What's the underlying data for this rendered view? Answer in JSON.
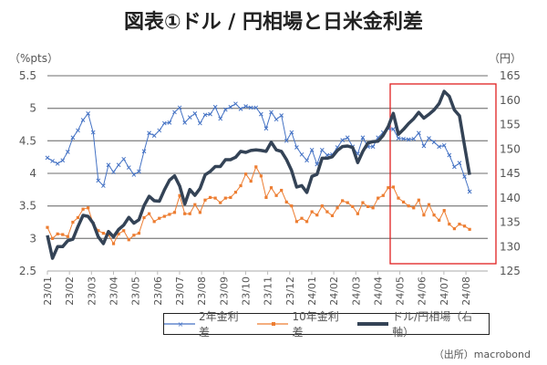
{
  "title": "図表①ドル / 円相場と日米金利差",
  "source": "（出所）macrobond",
  "chart_data": {
    "type": "line",
    "title": "図表①ドル / 円相場と日米金利差",
    "x_unit": "weekly observations starting 2023/01",
    "x_tick_labels": [
      "23/01",
      "23/02",
      "23/03",
      "23/04",
      "23/05",
      "23/06",
      "23/07",
      "23/08",
      "23/09",
      "23/10",
      "23/11",
      "23/12",
      "24/01",
      "24/02",
      "24/03",
      "24/04",
      "24/05",
      "24/06",
      "24/07",
      "24/08"
    ],
    "y_left": {
      "label": "（%pts）",
      "range": [
        2.5,
        5.5
      ],
      "ticks": [
        "2.5",
        "3",
        "3.5",
        "4",
        "4.5",
        "5",
        "5.5"
      ]
    },
    "y_right": {
      "label": "（円）",
      "range": [
        125,
        165
      ],
      "ticks": [
        "125",
        "130",
        "135",
        "140",
        "145",
        "150",
        "155",
        "160",
        "165"
      ]
    },
    "grid": true,
    "legend_position": "bottom",
    "highlight_box": "2024/05–2024/08",
    "series": [
      {
        "name": "2年金利差",
        "axis": "left",
        "color": "#4472C4",
        "marker": "x",
        "values": [
          4.24,
          4.19,
          4.15,
          4.2,
          4.33,
          4.55,
          4.66,
          4.82,
          4.92,
          4.63,
          3.89,
          3.81,
          4.13,
          4.02,
          4.13,
          4.22,
          4.09,
          3.98,
          4.03,
          4.34,
          4.62,
          4.58,
          4.66,
          4.77,
          4.78,
          4.94,
          5.01,
          4.78,
          4.86,
          4.92,
          4.77,
          4.9,
          4.91,
          5.02,
          4.84,
          4.98,
          5.02,
          5.07,
          4.99,
          5.03,
          5.01,
          5.01,
          4.91,
          4.69,
          4.94,
          4.83,
          4.89,
          4.5,
          4.63,
          4.4,
          4.29,
          4.2,
          4.36,
          4.14,
          4.36,
          4.28,
          4.29,
          4.4,
          4.51,
          4.55,
          4.41,
          4.3,
          4.55,
          4.41,
          4.41,
          4.55,
          4.63,
          4.69,
          4.68,
          4.54,
          4.53,
          4.52,
          4.53,
          4.62,
          4.42,
          4.54,
          4.48,
          4.41,
          4.43,
          4.28,
          4.1,
          4.16,
          3.95,
          3.72
        ]
      },
      {
        "name": "10年金利差",
        "axis": "left",
        "color": "#ED7D31",
        "marker": "square",
        "values": [
          3.17,
          3.0,
          3.07,
          3.06,
          3.03,
          3.25,
          3.32,
          3.45,
          3.47,
          3.23,
          3.12,
          3.08,
          3.06,
          2.92,
          3.07,
          3.12,
          2.98,
          3.05,
          3.08,
          3.32,
          3.38,
          3.26,
          3.31,
          3.34,
          3.37,
          3.4,
          3.66,
          3.38,
          3.38,
          3.52,
          3.4,
          3.59,
          3.63,
          3.62,
          3.55,
          3.62,
          3.63,
          3.71,
          3.81,
          3.99,
          3.88,
          4.1,
          3.96,
          3.63,
          3.78,
          3.66,
          3.74,
          3.56,
          3.5,
          3.26,
          3.31,
          3.26,
          3.41,
          3.36,
          3.5,
          3.41,
          3.35,
          3.47,
          3.58,
          3.55,
          3.49,
          3.38,
          3.55,
          3.49,
          3.47,
          3.62,
          3.66,
          3.78,
          3.79,
          3.62,
          3.56,
          3.5,
          3.47,
          3.59,
          3.36,
          3.52,
          3.36,
          3.28,
          3.43,
          3.22,
          3.15,
          3.22,
          3.19,
          3.14
        ]
      },
      {
        "name": "ドル/円相場（右軸）",
        "axis": "right",
        "color": "#344356",
        "marker": "none",
        "values": [
          132.3,
          127.6,
          130.0,
          130.0,
          131.2,
          131.5,
          134.1,
          136.4,
          136.2,
          134.8,
          132.0,
          130.6,
          133.1,
          132.0,
          133.5,
          134.4,
          136.0,
          134.8,
          135.5,
          138.4,
          140.3,
          139.4,
          139.3,
          141.6,
          143.6,
          144.5,
          142.4,
          138.7,
          141.7,
          140.5,
          141.9,
          144.7,
          145.4,
          146.4,
          146.4,
          147.8,
          147.8,
          148.3,
          149.5,
          149.3,
          149.7,
          149.8,
          149.7,
          149.5,
          151.4,
          149.8,
          149.5,
          147.8,
          145.6,
          142.2,
          142.5,
          141.1,
          144.4,
          144.8,
          148.1,
          148.1,
          148.4,
          149.7,
          150.5,
          150.6,
          150.3,
          147.2,
          149.5,
          151.2,
          151.5,
          151.6,
          152.8,
          154.6,
          157.3,
          153.0,
          154.0,
          155.2,
          156.2,
          157.5,
          156.3,
          157.1,
          158.0,
          159.3,
          161.8,
          160.8,
          158.0,
          156.8,
          150.6,
          144.7
        ]
      }
    ]
  }
}
